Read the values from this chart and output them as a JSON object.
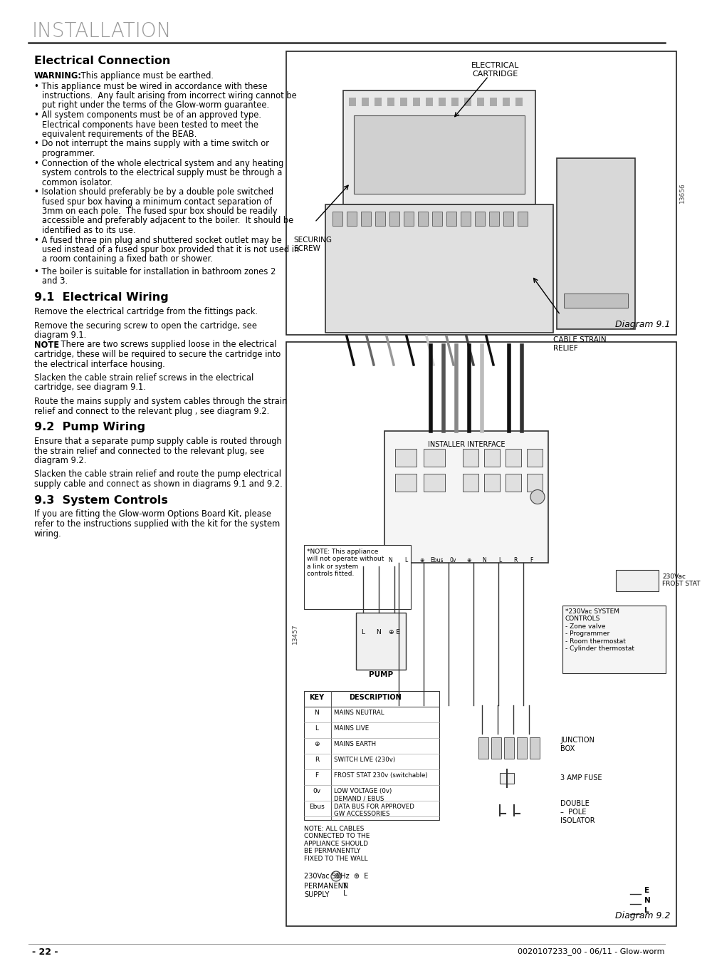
{
  "title": "INSTALLATION",
  "section_title": "Electrical Connection",
  "warning_line": "WARNING:  This appliance must be earthed.",
  "bullet_lines": [
    "• This appliance must be wired in accordance with these",
    "   instructions.  Any fault arising from incorrect wiring cannot be",
    "   put right under the terms of the Glow-worm guarantee.",
    "• All system components must be of an approved type.",
    "   Electrical components have been tested to meet the",
    "   equivalent requirements of the BEAB.",
    "• Do not interrupt the mains supply with a time switch or",
    "   programmer.",
    "• Connection of the whole electrical system and any heating",
    "   system controls to the electrical supply must be through a",
    "   common isolator.",
    "• Isolation should preferably be by a double pole switched",
    "   fused spur box having a minimum contact separation of",
    "   3mm on each pole.  The fused spur box should be readily",
    "   accessible and preferably adjacent to the boiler.  It should be",
    "   identified as to its use.",
    "• A fused three pin plug and shuttered socket outlet may be",
    "   used instead of a fused spur box provided that it is not used in",
    "   a room containing a fixed bath or shower."
  ],
  "extra_bullet_lines": [
    "• The boiler is suitable for installation in bathroom zones 2",
    "   and 3."
  ],
  "section_91_title": "9.1  Electrical Wiring",
  "para_91_lines": [
    "Remove the electrical cartridge from the fittings pack.",
    "",
    "Remove the securing screw to open the cartridge, see",
    "diagram 9.1.",
    "NOTE: There are two screws supplied loose in the electrical",
    "cartridge, these will be required to secure the cartridge into",
    "the electrical interface housing.",
    "",
    "Slacken the cable strain relief screws in the electrical",
    "cartridge, see diagram 9.1.",
    "",
    "Route the mains supply and system cables through the strain",
    "relief and connect to the relevant plug , see diagram 9.2."
  ],
  "note_bold_word": "NOTE",
  "section_92_title": "9.2  Pump Wiring",
  "para_92_lines": [
    "Ensure that a separate pump supply cable is routed through",
    "the strain relief and connected to the relevant plug, see",
    "diagram 9.2.",
    "",
    "Slacken the cable strain relief and route the pump electrical",
    "supply cable and connect as shown in diagrams 9.1 and 9.2."
  ],
  "section_93_title": "9.3  System Controls",
  "para_93_lines": [
    "If you are fitting the Glow-worm Options Board Kit, please",
    "refer to the instructions supplied with the kit for the system",
    "wiring."
  ],
  "diagram1_label": "Diagram 9.1",
  "diagram2_label": "Diagram 9.2",
  "diag1_id": "13656",
  "diag2_id": "13457",
  "diag1_elec_cart": "ELECTRICAL\nCARTRIDGE",
  "diag1_securing": "SECURING\nSCREW",
  "diag1_cable": "CABLE STRAIN\nRELIEF",
  "diag2_installer": "INSTALLER INTERFACE",
  "diag2_note_box": "*NOTE: This appliance\nwill not operate without\na link or system\ncontrols fitted.",
  "diag2_pump": "PUMP",
  "diag2_frost": "230Vac\nFROST STAT",
  "diag2_system": "*230Vac SYSTEM\nCONTROLS\n- Zone valve\n- Programmer\n- Room thermostat\n- Cylinder thermostat",
  "diag2_junction": "JUNCTION\nBOX",
  "diag2_fuse": "3 AMP FUSE",
  "diag2_isolator": "DOUBLE\n–  POLE\nISOLATOR",
  "diag2_supply": "230Vac 50Hz",
  "diag2_permanent": "PERMANENT\nSUPPLY",
  "key_items": [
    [
      "KEY",
      "DESCRIPTION"
    ],
    [
      "N",
      "MAINS NEUTRAL"
    ],
    [
      "L",
      "MAINS LIVE"
    ],
    [
      "⊕",
      "MAINS EARTH"
    ],
    [
      "R",
      "SWITCH LIVE (230v)"
    ],
    [
      "F",
      "FROST STAT 230v (switchable)"
    ],
    [
      "0v",
      "LOW VOLTAGE (0v)\nDEMAND / EBUS"
    ],
    [
      "Ebus",
      "DATA BUS FOR APPROVED\nGW ACCESSORIES"
    ]
  ],
  "diag2_note": "NOTE: ALL CABLES\nCONNECTED TO THE\nAPPLIANCE SHOULD\nBE PERMANENTLY\nFIXED TO THE WALL",
  "footer_left": "- 22 -",
  "footer_right": "0020107233_00 - 06/11 - Glow-worm",
  "bg_color": "#ffffff",
  "text_color": "#000000",
  "title_color": "#999999"
}
